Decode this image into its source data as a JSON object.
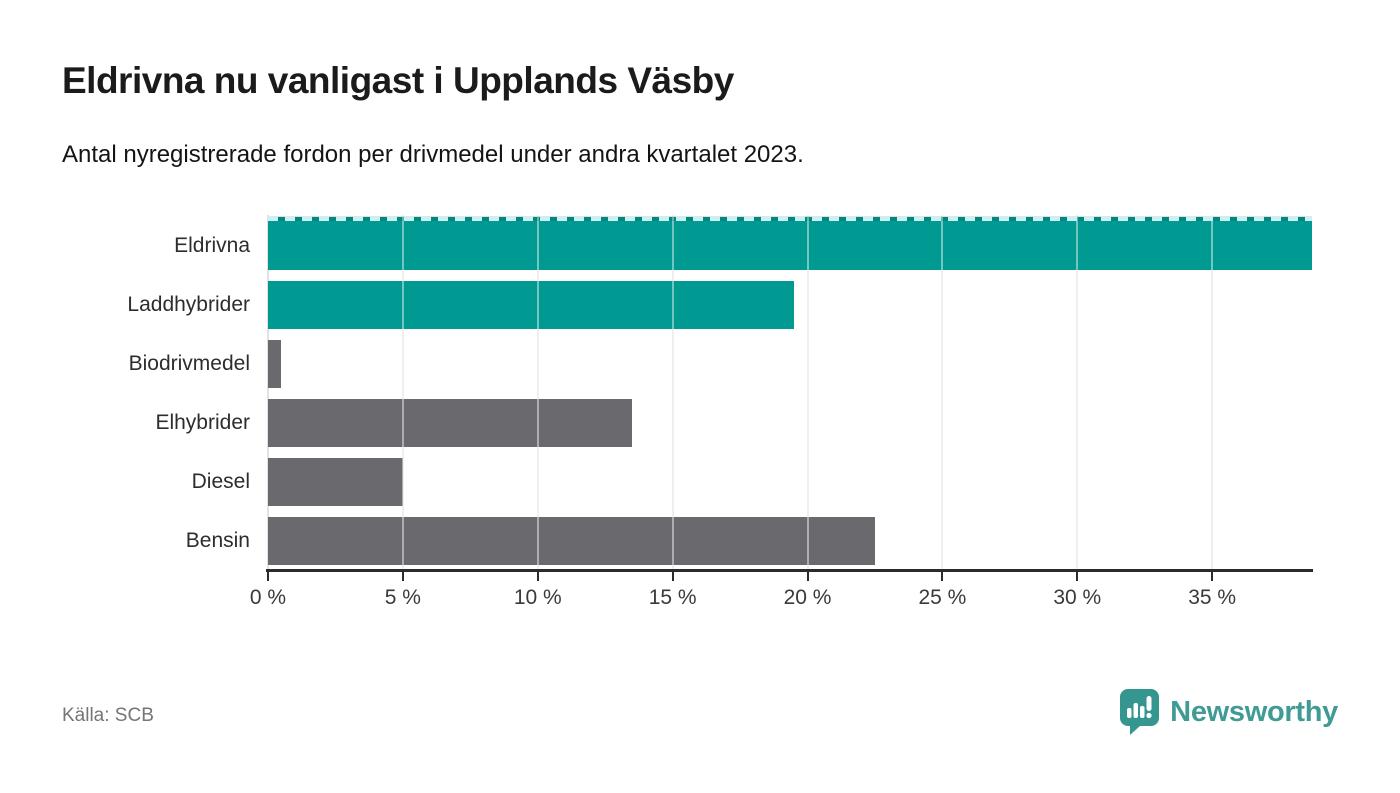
{
  "header": {
    "title": "Eldrivna nu vanligast i Upplands Väsby",
    "subtitle": "Antal nyregistrerade fordon per drivmedel under andra kvartalet 2023."
  },
  "chart_data": {
    "type": "bar",
    "orientation": "horizontal",
    "title": "Eldrivna nu vanligast i Upplands Väsby",
    "subtitle": "Antal nyregistrerade fordon per drivmedel under andra kvartalet 2023.",
    "categories": [
      "Eldrivna",
      "Laddhybrider",
      "Biodrivmedel",
      "Elhybrider",
      "Diesel",
      "Bensin"
    ],
    "values": [
      38.7,
      19.5,
      0.5,
      13.5,
      5.0,
      22.5
    ],
    "unit": "%",
    "highlighted": [
      true,
      true,
      false,
      false,
      false,
      false
    ],
    "clipped": [
      true,
      false,
      false,
      false,
      false,
      false
    ],
    "xlabel": "",
    "ylabel": "",
    "xlim": [
      0,
      38.7
    ],
    "xticks": [
      0,
      5,
      10,
      15,
      20,
      25,
      30,
      35
    ],
    "tick_suffix": " %",
    "grid": "vertical-light",
    "legend": "none"
  },
  "colors": {
    "highlight_bar": "#009a92",
    "default_bar": "#6a696e",
    "axis": "#2b2b2b",
    "gridline": "#e2e2e2",
    "clip_dash": "#cdeff1",
    "title": "#1b1b1b",
    "category_label": "#2d2d2d",
    "tick_label": "#3a3a3a",
    "source_text": "#757575",
    "brand": "#3f9b94"
  },
  "footer": {
    "source": "Källa: SCB",
    "brand_wordmark": "Newsworthy"
  }
}
